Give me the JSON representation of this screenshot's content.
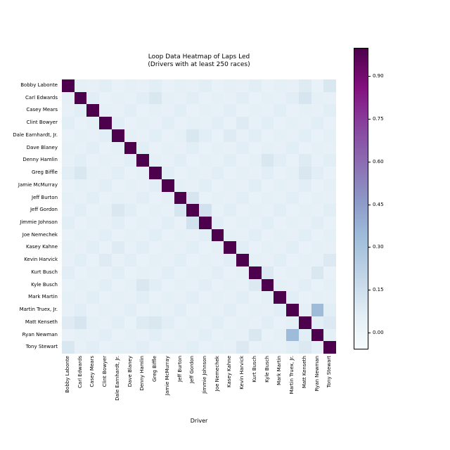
{
  "figure": {
    "title_line1": "Loop Data Heatmap of Laps Led",
    "title_line2": "(Drivers with at least 250 races)",
    "xlabel": "Driver"
  },
  "chart_data": {
    "type": "heatmap",
    "title": "Loop Data Heatmap of Laps Led (Drivers with at least 250 races)",
    "xlabel": "Driver",
    "ylabel": "",
    "legend_position": "right-colorbar",
    "grid": false,
    "drivers": [
      "Bobby Labonte",
      "Carl Edwards",
      "Casey Mears",
      "Clint Bowyer",
      "Dale Earnhardt, Jr.",
      "Dave Blaney",
      "Denny Hamlin",
      "Greg Biffle",
      "Jamie McMurray",
      "Jeff Burton",
      "Jeff Gordon",
      "Jimmie Johnson",
      "Joe Nemechek",
      "Kasey Kahne",
      "Kevin Harvick",
      "Kurt Busch",
      "Kyle Busch",
      "Mark Martin",
      "Martin Truex, Jr.",
      "Matt Kenseth",
      "Ryan Newman",
      "Tony Stewart"
    ],
    "matrix": [
      [
        1.0,
        0.05,
        0.04,
        0.06,
        0.03,
        0.05,
        0.04,
        0.06,
        0.03,
        0.05,
        0.04,
        0.06,
        0.03,
        0.05,
        0.04,
        0.06,
        0.03,
        0.05,
        0.04,
        0.08,
        0.03,
        0.1
      ],
      [
        0.05,
        1.0,
        0.06,
        0.03,
        0.05,
        0.04,
        0.06,
        0.1,
        0.05,
        0.04,
        0.06,
        0.03,
        0.05,
        0.04,
        0.06,
        0.03,
        0.05,
        0.04,
        0.06,
        0.11,
        0.05,
        0.04
      ],
      [
        0.04,
        0.06,
        1.0,
        0.05,
        0.04,
        0.06,
        0.03,
        0.05,
        0.04,
        0.06,
        0.03,
        0.05,
        0.04,
        0.06,
        0.03,
        0.05,
        0.04,
        0.06,
        0.03,
        0.05,
        0.04,
        0.06
      ],
      [
        0.06,
        0.03,
        0.05,
        1.0,
        0.06,
        0.03,
        0.05,
        0.04,
        0.06,
        0.03,
        0.05,
        0.04,
        0.06,
        0.03,
        0.08,
        0.04,
        0.06,
        0.03,
        0.05,
        0.04,
        0.06,
        0.03
      ],
      [
        0.03,
        0.05,
        0.04,
        0.06,
        1.0,
        0.05,
        0.04,
        0.06,
        0.03,
        0.05,
        0.1,
        0.06,
        0.03,
        0.08,
        0.04,
        0.06,
        0.03,
        0.05,
        0.04,
        0.06,
        0.03,
        0.05
      ],
      [
        0.05,
        0.04,
        0.06,
        0.03,
        0.05,
        1.0,
        0.06,
        0.03,
        0.05,
        0.04,
        0.06,
        0.03,
        0.05,
        0.04,
        0.06,
        0.03,
        0.05,
        0.04,
        0.06,
        0.03,
        0.05,
        0.04
      ],
      [
        0.04,
        0.06,
        0.03,
        0.05,
        0.04,
        0.06,
        1.0,
        0.05,
        0.04,
        0.06,
        0.03,
        0.05,
        0.04,
        0.06,
        0.03,
        0.05,
        0.1,
        0.06,
        0.03,
        0.08,
        0.04,
        0.06
      ],
      [
        0.06,
        0.1,
        0.05,
        0.04,
        0.06,
        0.03,
        0.05,
        1.0,
        0.06,
        0.03,
        0.05,
        0.04,
        0.06,
        0.03,
        0.05,
        0.04,
        0.06,
        0.03,
        0.05,
        0.1,
        0.06,
        0.03
      ],
      [
        0.03,
        0.05,
        0.04,
        0.06,
        0.03,
        0.05,
        0.04,
        0.06,
        1.0,
        0.05,
        0.04,
        0.06,
        0.03,
        0.05,
        0.04,
        0.06,
        0.03,
        0.05,
        0.04,
        0.06,
        0.03,
        0.05
      ],
      [
        0.05,
        0.04,
        0.06,
        0.03,
        0.05,
        0.04,
        0.06,
        0.03,
        0.05,
        1.0,
        0.11,
        0.03,
        0.05,
        0.04,
        0.06,
        0.03,
        0.05,
        0.04,
        0.06,
        0.03,
        0.05,
        0.04
      ],
      [
        0.04,
        0.06,
        0.03,
        0.05,
        0.1,
        0.06,
        0.03,
        0.05,
        0.04,
        0.11,
        1.0,
        0.13,
        0.04,
        0.06,
        0.03,
        0.05,
        0.04,
        0.06,
        0.03,
        0.05,
        0.04,
        0.06
      ],
      [
        0.06,
        0.03,
        0.05,
        0.04,
        0.06,
        0.03,
        0.05,
        0.04,
        0.06,
        0.03,
        0.13,
        1.0,
        0.06,
        0.03,
        0.05,
        0.04,
        0.06,
        0.03,
        0.05,
        0.04,
        0.06,
        0.03
      ],
      [
        0.03,
        0.05,
        0.04,
        0.06,
        0.03,
        0.05,
        0.04,
        0.06,
        0.03,
        0.05,
        0.04,
        0.06,
        1.0,
        0.05,
        0.04,
        0.06,
        0.03,
        0.05,
        0.04,
        0.06,
        0.03,
        0.05
      ],
      [
        0.05,
        0.04,
        0.06,
        0.03,
        0.08,
        0.04,
        0.06,
        0.03,
        0.05,
        0.04,
        0.06,
        0.03,
        0.05,
        1.0,
        0.06,
        0.03,
        0.05,
        0.04,
        0.06,
        0.03,
        0.05,
        0.04
      ],
      [
        0.04,
        0.06,
        0.03,
        0.08,
        0.04,
        0.06,
        0.03,
        0.05,
        0.04,
        0.06,
        0.03,
        0.05,
        0.04,
        0.06,
        1.0,
        0.05,
        0.04,
        0.06,
        0.03,
        0.05,
        0.04,
        0.09
      ],
      [
        0.06,
        0.03,
        0.05,
        0.04,
        0.06,
        0.03,
        0.05,
        0.04,
        0.06,
        0.03,
        0.05,
        0.04,
        0.06,
        0.03,
        0.05,
        1.0,
        0.09,
        0.03,
        0.05,
        0.04,
        0.1,
        0.03
      ],
      [
        0.03,
        0.05,
        0.04,
        0.06,
        0.03,
        0.05,
        0.1,
        0.06,
        0.03,
        0.05,
        0.04,
        0.06,
        0.03,
        0.05,
        0.04,
        0.09,
        1.0,
        0.05,
        0.04,
        0.06,
        0.03,
        0.05
      ],
      [
        0.05,
        0.04,
        0.06,
        0.03,
        0.05,
        0.04,
        0.06,
        0.03,
        0.05,
        0.04,
        0.06,
        0.03,
        0.05,
        0.04,
        0.06,
        0.03,
        0.05,
        1.0,
        0.06,
        0.03,
        0.05,
        0.04
      ],
      [
        0.04,
        0.06,
        0.03,
        0.05,
        0.04,
        0.06,
        0.03,
        0.05,
        0.04,
        0.06,
        0.03,
        0.05,
        0.04,
        0.06,
        0.03,
        0.05,
        0.04,
        0.06,
        1.0,
        0.05,
        0.34,
        0.06
      ],
      [
        0.08,
        0.11,
        0.05,
        0.04,
        0.06,
        0.03,
        0.08,
        0.1,
        0.06,
        0.03,
        0.05,
        0.04,
        0.06,
        0.03,
        0.05,
        0.04,
        0.06,
        0.03,
        0.05,
        1.0,
        0.06,
        0.09
      ],
      [
        0.03,
        0.05,
        0.04,
        0.06,
        0.03,
        0.05,
        0.04,
        0.06,
        0.03,
        0.05,
        0.04,
        0.06,
        0.03,
        0.05,
        0.04,
        0.1,
        0.03,
        0.05,
        0.34,
        0.06,
        1.0,
        0.05
      ],
      [
        0.1,
        0.04,
        0.06,
        0.03,
        0.05,
        0.04,
        0.06,
        0.03,
        0.05,
        0.04,
        0.06,
        0.03,
        0.05,
        0.04,
        0.09,
        0.03,
        0.05,
        0.04,
        0.06,
        0.09,
        0.05,
        1.0
      ]
    ],
    "vmin": -0.06,
    "vmax": 1.0,
    "colormap": {
      "name": "BuPu",
      "stops": [
        "#f7fcfd",
        "#e0ecf4",
        "#bfd3e6",
        "#9ebcda",
        "#8c96c6",
        "#8c6bb1",
        "#88419d",
        "#810f7c",
        "#4d004b"
      ]
    },
    "colorbar_ticks": [
      {
        "value": 0.9,
        "label": "0.90"
      },
      {
        "value": 0.75,
        "label": "0.75"
      },
      {
        "value": 0.6,
        "label": "0.60"
      },
      {
        "value": 0.45,
        "label": "0.45"
      },
      {
        "value": 0.3,
        "label": "0.30"
      },
      {
        "value": 0.15,
        "label": "0.15"
      },
      {
        "value": 0.0,
        "label": "0.00"
      }
    ]
  }
}
